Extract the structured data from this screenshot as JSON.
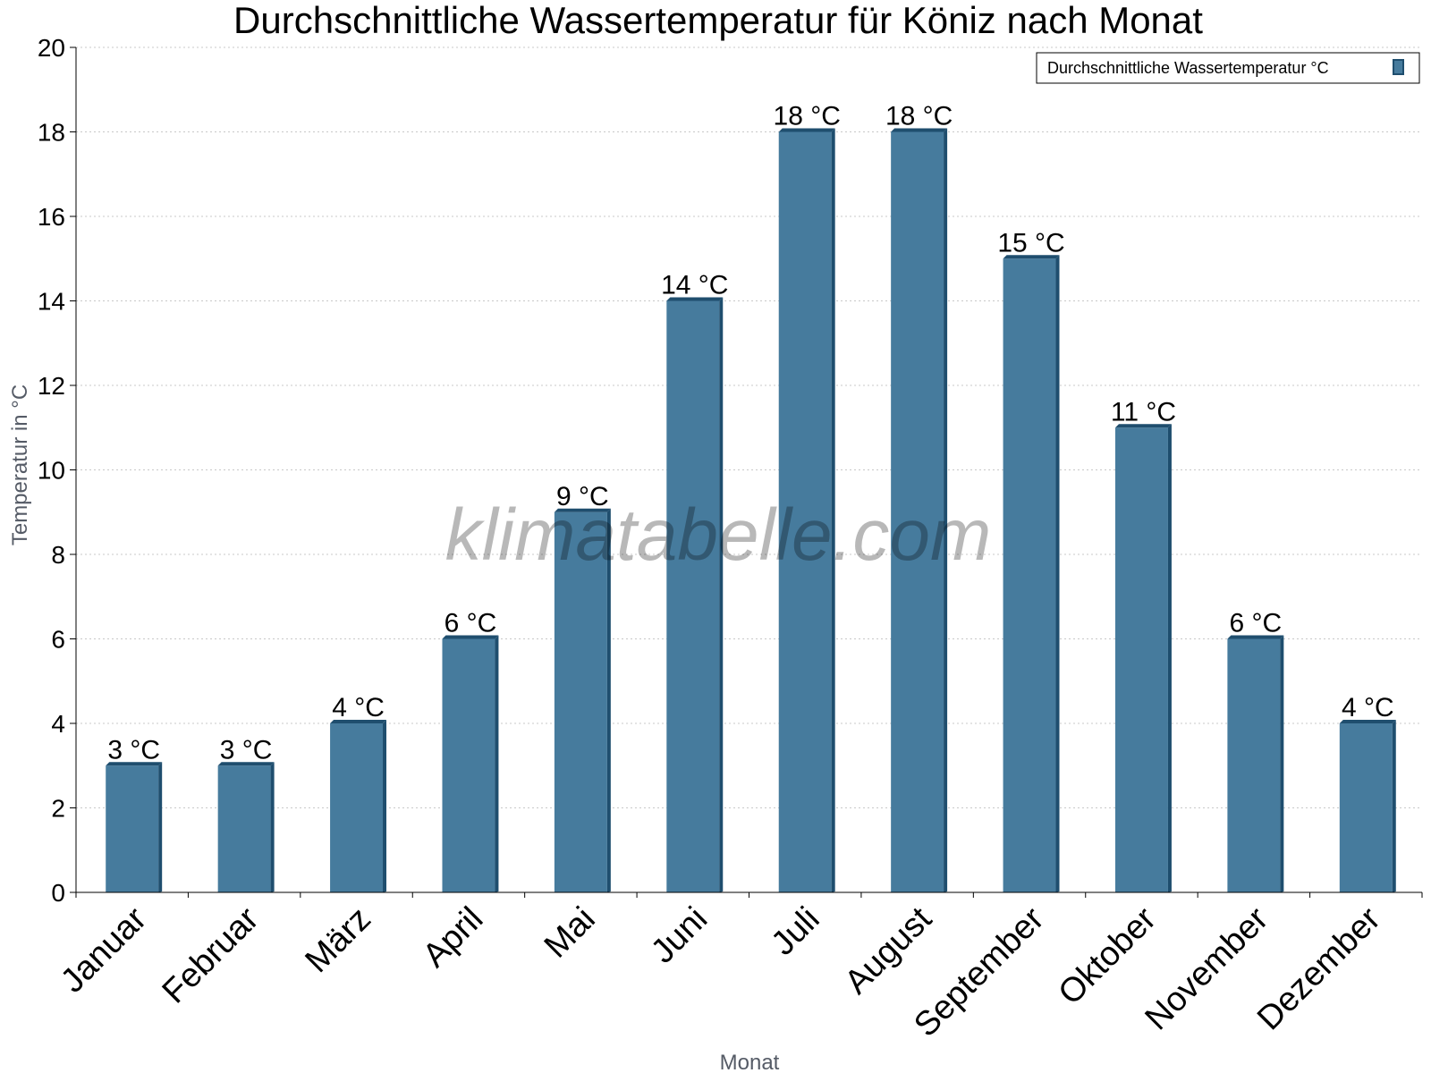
{
  "chart_data": {
    "type": "bar",
    "title": "Durchschnittliche Wassertemperatur für Köniz nach Monat",
    "xlabel": "Monat",
    "ylabel": "Temperatur in °C",
    "categories": [
      "Januar",
      "Februar",
      "März",
      "April",
      "Mai",
      "Juni",
      "Juli",
      "August",
      "September",
      "Oktober",
      "November",
      "Dezember"
    ],
    "series": [
      {
        "name": "Durchschnittliche Wassertemperatur °C",
        "values": [
          3,
          3,
          4,
          6,
          9,
          14,
          18,
          18,
          15,
          11,
          6,
          4
        ],
        "data_labels": [
          "3 °C",
          "3 °C",
          "4 °C",
          "6 °C",
          "9 °C",
          "14 °C",
          "18 °C",
          "18 °C",
          "15 °C",
          "11 °C",
          "6 °C",
          "4 °C"
        ],
        "color": "#467b9d",
        "edge_color": "#1f4e6e"
      }
    ],
    "ylim": [
      0,
      20
    ],
    "yticks": [
      0,
      2,
      4,
      6,
      8,
      10,
      12,
      14,
      16,
      18,
      20
    ],
    "grid": true,
    "legend_position": "top-right",
    "watermark": "klimatabelle.com"
  }
}
